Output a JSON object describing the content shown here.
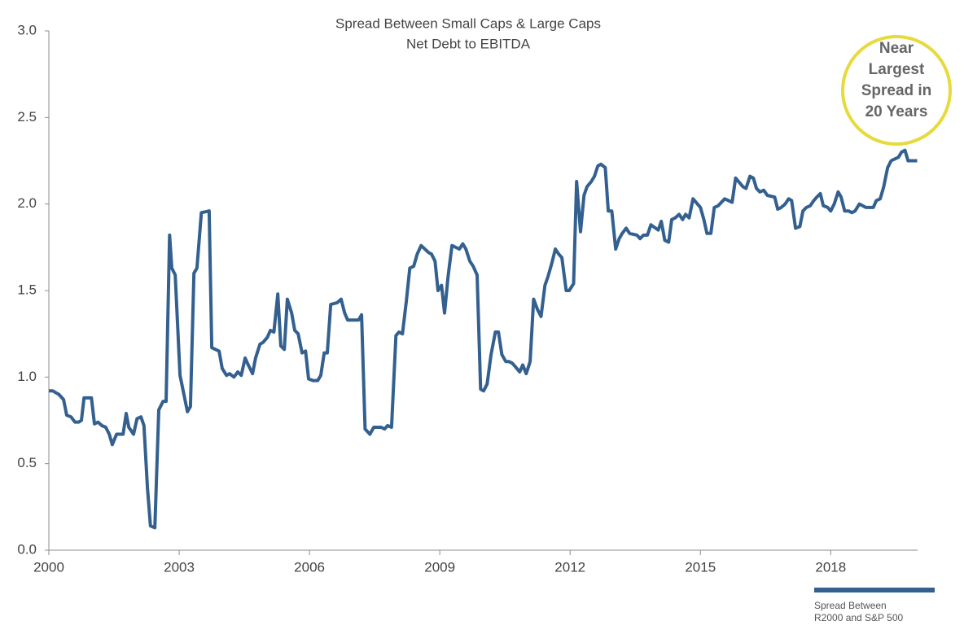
{
  "chart_data": {
    "type": "line",
    "title": "Spread Between Small Caps & Large Caps",
    "subtitle": "Net Debt to EBITDA",
    "annotation": [
      "Near",
      "Largest",
      "Spread in",
      "20 Years"
    ],
    "xlim": [
      2000,
      2020
    ],
    "xticks": [
      2000,
      2003,
      2006,
      2009,
      2012,
      2015,
      2018
    ],
    "ylim": [
      0,
      3
    ],
    "yticks": [
      {
        "value": 0,
        "label": "0.0"
      },
      0.5,
      {
        "value": 1,
        "label": "1.0"
      },
      1.5,
      {
        "value": 2,
        "label": "2.0"
      },
      2.5,
      {
        "value": 3,
        "label": "3.0"
      }
    ],
    "grid": false,
    "legend": "bottom-right",
    "x": [
      2000.0,
      2000.09,
      2000.23,
      2000.34,
      2000.41,
      2000.51,
      2000.6,
      2000.69,
      2000.75,
      2000.81,
      2000.98,
      2001.05,
      2001.13,
      2001.22,
      2001.31,
      2001.39,
      2001.46,
      2001.56,
      2001.71,
      2001.78,
      2001.84,
      2001.95,
      2002.03,
      2002.12,
      2002.19,
      2002.27,
      2002.34,
      2002.44,
      2002.53,
      2002.63,
      2002.7,
      2002.78,
      2002.83,
      2002.91,
      2003.02,
      2003.11,
      2003.19,
      2003.26,
      2003.34,
      2003.41,
      2003.51,
      2003.69,
      2003.75,
      2003.92,
      2003.99,
      2004.09,
      2004.16,
      2004.26,
      2004.35,
      2004.43,
      2004.52,
      2004.59,
      2004.69,
      2004.76,
      2004.86,
      2004.93,
      2005.03,
      2005.1,
      2005.18,
      2005.27,
      2005.34,
      2005.42,
      2005.49,
      2005.59,
      2005.66,
      2005.74,
      2005.83,
      2005.91,
      2005.98,
      2006.08,
      2006.19,
      2006.26,
      2006.34,
      2006.41,
      2006.49,
      2006.64,
      2006.73,
      2006.81,
      2006.88,
      2007.05,
      2007.13,
      2007.2,
      2007.28,
      2007.39,
      2007.48,
      2007.65,
      2007.73,
      2007.8,
      2007.89,
      2007.99,
      2008.06,
      2008.14,
      2008.23,
      2008.31,
      2008.4,
      2008.48,
      2008.57,
      2008.74,
      2008.81,
      2008.89,
      2008.96,
      2009.04,
      2009.11,
      2009.19,
      2009.28,
      2009.45,
      2009.53,
      2009.6,
      2009.69,
      2009.77,
      2009.86,
      2009.94,
      2010.01,
      2010.09,
      2010.18,
      2010.28,
      2010.35,
      2010.43,
      2010.52,
      2010.59,
      2010.67,
      2010.74,
      2010.84,
      2010.91,
      2010.99,
      2011.08,
      2011.16,
      2011.25,
      2011.33,
      2011.42,
      2011.49,
      2011.57,
      2011.66,
      2011.74,
      2011.81,
      2011.91,
      2011.98,
      2012.08,
      2012.15,
      2012.24,
      2012.32,
      2012.39,
      2012.49,
      2012.56,
      2012.64,
      2012.71,
      2012.81,
      2012.88,
      2012.96,
      2013.05,
      2013.13,
      2013.2,
      2013.29,
      2013.37,
      2013.54,
      2013.61,
      2013.69,
      2013.78,
      2013.86,
      2014.03,
      2014.1,
      2014.18,
      2014.27,
      2014.34,
      2014.42,
      2014.51,
      2014.59,
      2014.66,
      2014.74,
      2014.83,
      2015.0,
      2015.08,
      2015.15,
      2015.24,
      2015.32,
      2015.41,
      2015.56,
      2015.73,
      2015.81,
      2015.98,
      2016.05,
      2016.14,
      2016.22,
      2016.29,
      2016.37,
      2016.46,
      2016.54,
      2016.71,
      2016.78,
      2016.86,
      2016.95,
      2017.03,
      2017.1,
      2017.19,
      2017.29,
      2017.36,
      2017.44,
      2017.53,
      2017.61,
      2017.68,
      2017.76,
      2017.83,
      2017.93,
      2018.0,
      2018.08,
      2018.17,
      2018.24,
      2018.32,
      2018.41,
      2018.49,
      2018.56,
      2018.66,
      2018.81,
      2018.98,
      2019.05,
      2019.14,
      2019.22,
      2019.31,
      2019.39,
      2019.56,
      2019.63,
      2019.71,
      2019.78,
      2019.99
    ],
    "series": [
      {
        "name": "Spread Between R2000 and S&P 500",
        "color": "#33608f",
        "values": [
          0.92,
          0.92,
          0.9,
          0.87,
          0.78,
          0.77,
          0.74,
          0.74,
          0.75,
          0.88,
          0.88,
          0.73,
          0.74,
          0.72,
          0.71,
          0.67,
          0.61,
          0.67,
          0.67,
          0.79,
          0.71,
          0.67,
          0.76,
          0.77,
          0.72,
          0.36,
          0.14,
          0.13,
          0.81,
          0.86,
          0.86,
          1.82,
          1.63,
          1.59,
          1.01,
          0.9,
          0.8,
          0.83,
          1.6,
          1.63,
          1.95,
          1.96,
          1.17,
          1.15,
          1.05,
          1.01,
          1.02,
          1.0,
          1.03,
          1.01,
          1.11,
          1.07,
          1.02,
          1.11,
          1.19,
          1.2,
          1.23,
          1.27,
          1.26,
          1.48,
          1.18,
          1.16,
          1.45,
          1.37,
          1.27,
          1.25,
          1.14,
          1.15,
          0.99,
          0.98,
          0.98,
          1.01,
          1.14,
          1.14,
          1.42,
          1.43,
          1.45,
          1.37,
          1.33,
          1.33,
          1.33,
          1.36,
          0.7,
          0.67,
          0.71,
          0.71,
          0.7,
          0.72,
          0.71,
          1.24,
          1.26,
          1.25,
          1.44,
          1.63,
          1.64,
          1.71,
          1.76,
          1.72,
          1.71,
          1.67,
          1.5,
          1.53,
          1.37,
          1.58,
          1.76,
          1.74,
          1.77,
          1.74,
          1.67,
          1.64,
          1.59,
          0.93,
          0.92,
          0.96,
          1.13,
          1.26,
          1.26,
          1.13,
          1.09,
          1.09,
          1.08,
          1.06,
          1.03,
          1.07,
          1.02,
          1.09,
          1.45,
          1.39,
          1.35,
          1.53,
          1.58,
          1.65,
          1.74,
          1.71,
          1.69,
          1.5,
          1.5,
          1.54,
          2.13,
          1.84,
          2.05,
          2.1,
          2.13,
          2.16,
          2.22,
          2.23,
          2.21,
          1.96,
          1.96,
          1.74,
          1.8,
          1.83,
          1.86,
          1.83,
          1.82,
          1.8,
          1.82,
          1.82,
          1.88,
          1.85,
          1.9,
          1.79,
          1.78,
          1.91,
          1.92,
          1.94,
          1.91,
          1.94,
          1.92,
          2.03,
          1.98,
          1.91,
          1.83,
          1.83,
          1.98,
          1.99,
          2.03,
          2.01,
          2.15,
          2.1,
          2.09,
          2.16,
          2.15,
          2.09,
          2.07,
          2.08,
          2.05,
          2.04,
          1.97,
          1.98,
          2.0,
          2.03,
          2.02,
          1.86,
          1.87,
          1.96,
          1.98,
          1.99,
          2.02,
          2.04,
          2.06,
          1.99,
          1.98,
          1.96,
          2.0,
          2.07,
          2.04,
          1.96,
          1.96,
          1.95,
          1.96,
          2.0,
          1.98,
          1.98,
          2.02,
          2.03,
          2.1,
          2.21,
          2.25,
          2.27,
          2.3,
          2.31,
          2.25,
          2.25
        ]
      }
    ]
  }
}
